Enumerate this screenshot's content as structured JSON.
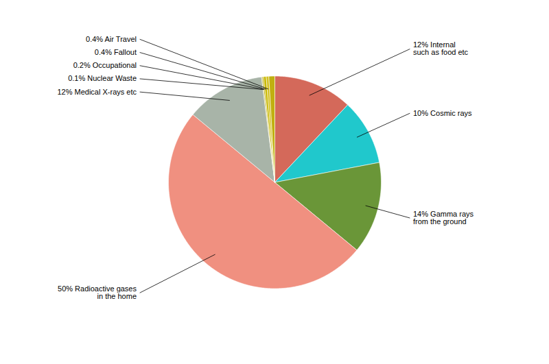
{
  "chart_data": {
    "type": "pie",
    "categories": [
      "12% Internal\nsuch as food etc",
      "10% Cosmic rays",
      "14% Gamma rays\nfrom the ground",
      "50% Radioactive gases\nin the home",
      "12% Medical X-rays etc",
      "0.1% Nuclear Waste",
      "0.2% Occupational",
      "0.4% Fallout",
      "0.4% Air Travel",
      null
    ],
    "values": [
      12,
      10,
      14,
      50,
      12,
      0.1,
      0.2,
      0.4,
      0.4,
      0.9
    ],
    "colors": [
      "#d4695a",
      "#20c8cc",
      "#6a9638",
      "#f09080",
      "#a8b4a8",
      "#a09000",
      "#b8a800",
      "#c8b800",
      "#d4c020",
      "#c0b010"
    ]
  }
}
